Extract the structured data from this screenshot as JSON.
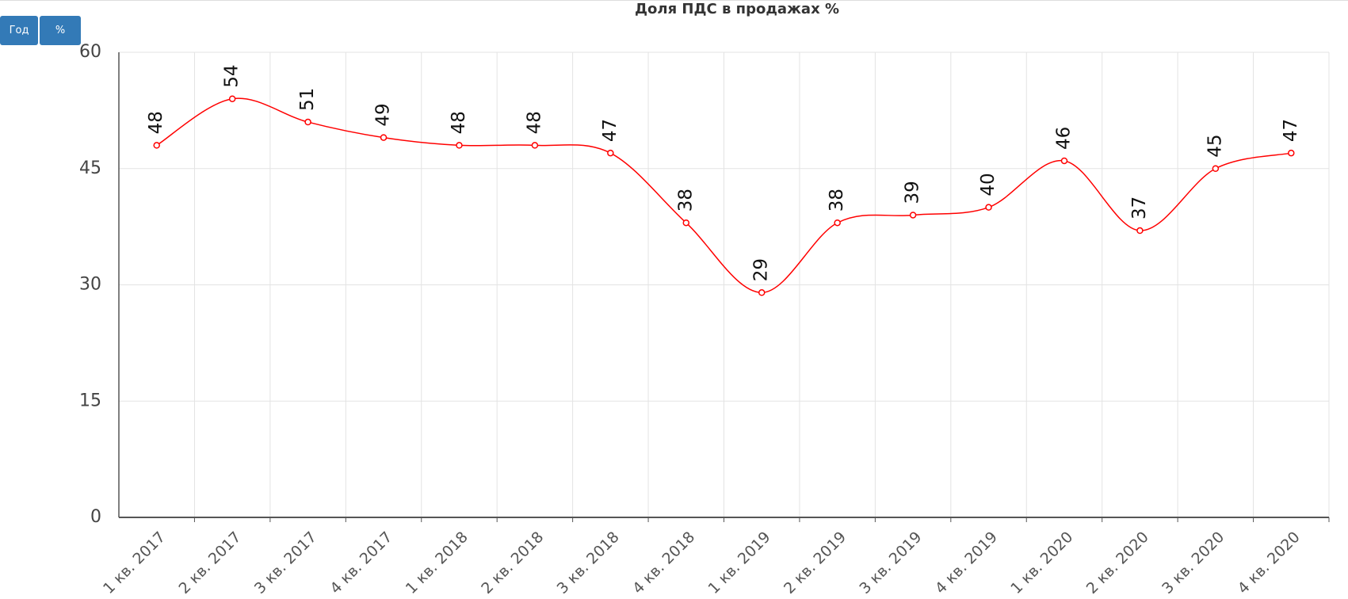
{
  "buttons": [
    "Год",
    "%"
  ],
  "chart_data": {
    "type": "line",
    "title": "Доля ПДС в продажах %",
    "categories": [
      "1 кв. 2017",
      "2 кв. 2017",
      "3 кв. 2017",
      "4 кв. 2017",
      "1 кв. 2018",
      "2 кв. 2018",
      "3 кв. 2018",
      "4 кв. 2018",
      "1 кв. 2019",
      "2 кв. 2019",
      "3 кв. 2019",
      "4 кв. 2019",
      "1 кв. 2020",
      "2 кв. 2020",
      "3 кв. 2020",
      "4 кв. 2020"
    ],
    "series": [
      {
        "color": "#ff0000",
        "values": [
          48,
          54,
          51,
          49,
          48,
          48,
          47,
          38,
          29,
          38,
          39,
          40,
          46,
          37,
          45,
          47
        ]
      }
    ],
    "ylim": [
      0,
      60
    ],
    "yticks": [
      0,
      15,
      30,
      45,
      60
    ],
    "grid": true,
    "smooth": true
  }
}
